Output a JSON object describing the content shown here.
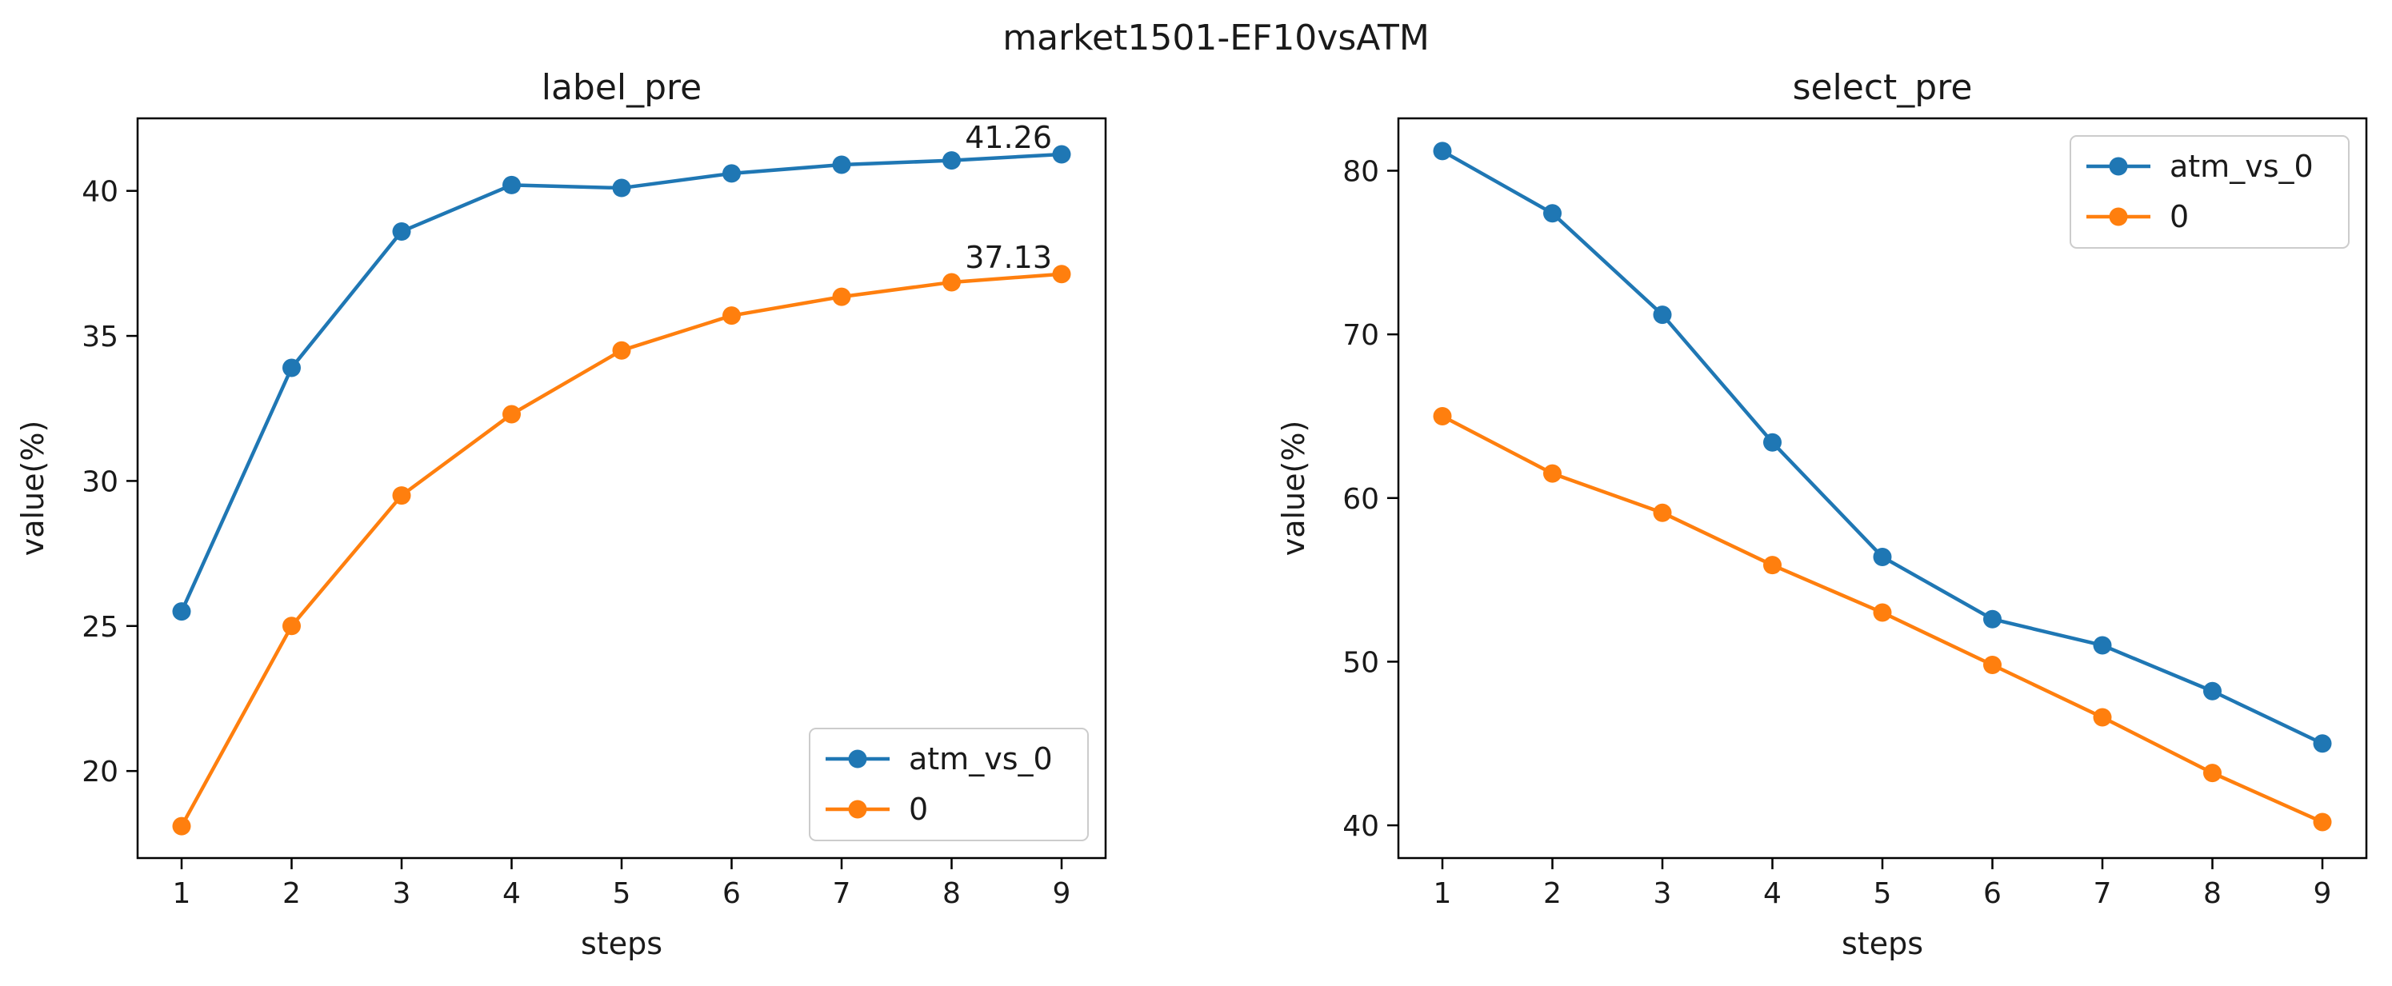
{
  "figure": {
    "suptitle": "market1501-EF10vsATM"
  },
  "chart_data": [
    {
      "type": "line",
      "title": "label_pre",
      "xlabel": "steps",
      "ylabel": "value(%)",
      "x": [
        1,
        2,
        3,
        4,
        5,
        6,
        7,
        8,
        9
      ],
      "xlim": [
        0.6,
        9.4
      ],
      "ylim": [
        17.0,
        42.5
      ],
      "xticks": [
        1,
        2,
        3,
        4,
        5,
        6,
        7,
        8,
        9
      ],
      "yticks": [
        20,
        25,
        30,
        35,
        40
      ],
      "legend_position": "lower-right",
      "grid": false,
      "series": [
        {
          "name": "atm_vs_0",
          "color": "#1f77b4",
          "values": [
            25.5,
            33.9,
            38.6,
            40.2,
            40.1,
            40.6,
            40.9,
            41.05,
            41.26
          ]
        },
        {
          "name": "0",
          "color": "#ff7f0e",
          "values": [
            18.1,
            25.0,
            29.5,
            32.3,
            34.5,
            35.7,
            36.35,
            36.85,
            37.13
          ]
        }
      ],
      "annotations": [
        {
          "text": "41.26",
          "x": 9,
          "y": 41.26
        },
        {
          "text": "37.13",
          "x": 9,
          "y": 37.13
        }
      ]
    },
    {
      "type": "line",
      "title": "select_pre",
      "xlabel": "steps",
      "ylabel": "value(%)",
      "x": [
        1,
        2,
        3,
        4,
        5,
        6,
        7,
        8,
        9
      ],
      "xlim": [
        0.6,
        9.4
      ],
      "ylim": [
        38.0,
        83.2
      ],
      "xticks": [
        1,
        2,
        3,
        4,
        5,
        6,
        7,
        8,
        9
      ],
      "yticks": [
        40,
        50,
        60,
        70,
        80
      ],
      "legend_position": "upper-right",
      "grid": false,
      "series": [
        {
          "name": "atm_vs_0",
          "color": "#1f77b4",
          "values": [
            81.2,
            77.4,
            71.2,
            63.4,
            56.4,
            52.6,
            51.0,
            48.2,
            45.0
          ]
        },
        {
          "name": "0",
          "color": "#ff7f0e",
          "values": [
            65.0,
            61.5,
            59.1,
            55.9,
            53.0,
            49.8,
            46.6,
            43.2,
            40.2
          ]
        }
      ]
    }
  ]
}
